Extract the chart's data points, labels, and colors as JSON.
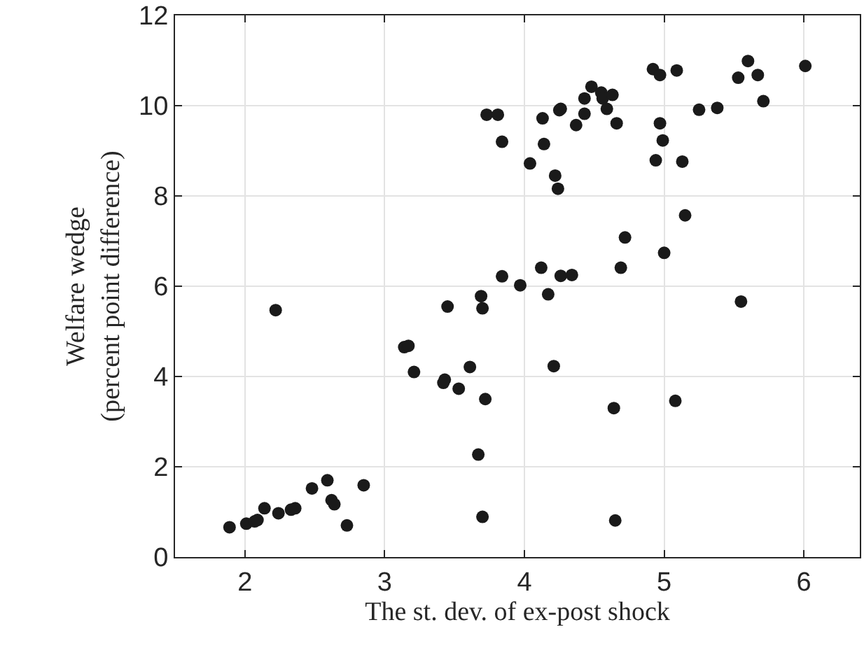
{
  "chart_data": {
    "type": "scatter",
    "xlabel": "The st. dev. of ex-post shock",
    "ylabel": "Welfare wedge\n(percent point difference)",
    "x": [
      3.73,
      3.81,
      3.84,
      3.84,
      3.97,
      3.69,
      4.13,
      4.14,
      4.04,
      4.22,
      4.24,
      4.26,
      4.25,
      4.37,
      4.43,
      4.43,
      4.48,
      4.55,
      4.56,
      4.63,
      4.59,
      4.66,
      4.92,
      4.97,
      5.09,
      4.97,
      4.99,
      4.94,
      5.13,
      5.25,
      5.38,
      5.53,
      5.6,
      5.67,
      5.71,
      6.01,
      5.15,
      4.72,
      5.0,
      4.69,
      4.12,
      4.26,
      4.34,
      4.17,
      5.55,
      2.22,
      3.45,
      3.7,
      3.14,
      3.17,
      3.21,
      3.43,
      3.42,
      3.61,
      3.53,
      3.72,
      3.67,
      3.7,
      1.89,
      2.01,
      2.07,
      2.09,
      2.14,
      2.24,
      2.33,
      2.36,
      2.48,
      2.59,
      2.62,
      2.64,
      2.73,
      2.85,
      4.21,
      4.64,
      5.08,
      4.65
    ],
    "values": [
      9.8,
      9.8,
      9.2,
      6.22,
      6.02,
      5.78,
      9.72,
      9.15,
      8.72,
      8.45,
      8.16,
      9.93,
      9.9,
      9.57,
      9.82,
      10.16,
      10.42,
      10.29,
      10.16,
      10.24,
      9.93,
      9.61,
      10.81,
      10.68,
      10.78,
      9.61,
      9.23,
      8.79,
      8.76,
      9.91,
      9.95,
      10.62,
      10.99,
      10.68,
      10.1,
      10.88,
      7.57,
      7.08,
      6.74,
      6.41,
      6.41,
      6.23,
      6.25,
      5.82,
      5.66,
      5.47,
      5.55,
      5.51,
      4.65,
      4.68,
      4.1,
      3.93,
      3.86,
      4.21,
      3.73,
      3.5,
      2.27,
      0.89,
      0.66,
      0.74,
      0.79,
      0.82,
      1.08,
      0.97,
      1.05,
      1.08,
      1.52,
      1.7,
      1.26,
      1.17,
      0.7,
      1.59,
      4.23,
      3.3,
      3.46,
      0.81
    ],
    "color": "#1a1a1a",
    "marker": "circle",
    "xlim": [
      1.5,
      6.4
    ],
    "xticks": [
      2,
      3,
      4,
      5,
      6
    ],
    "ylim": [
      0,
      12
    ],
    "yticks": [
      0,
      2,
      4,
      6,
      8,
      10,
      12
    ],
    "grid": true
  }
}
